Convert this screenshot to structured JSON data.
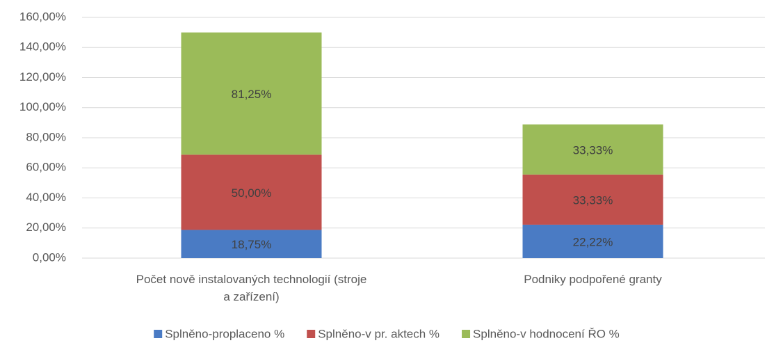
{
  "chart_data": {
    "type": "stacked_bar",
    "categories": [
      "Počet nově instalovaných technologií (stroje a zařízení)",
      "Podniky podpořené granty"
    ],
    "series": [
      {
        "name": "Splněno-proplaceno %",
        "color": "#4a7bc4",
        "values": [
          18.75,
          22.22
        ],
        "value_labels": [
          "18,75%",
          "22,22%"
        ]
      },
      {
        "name": "Splněno-v pr. aktech %",
        "color": "#c0504d",
        "values": [
          50,
          33.33
        ],
        "value_labels": [
          "50,00%",
          "33,33%"
        ]
      },
      {
        "name": "Splněno-v hodnocení ŘO %",
        "color": "#9bbb59",
        "values": [
          81.25,
          33.33
        ],
        "value_labels": [
          "81,25%",
          "33,33%"
        ]
      }
    ],
    "ylim": [
      0,
      160
    ],
    "yticks": [
      {
        "value": 0,
        "label": "0,00%"
      },
      {
        "value": 20,
        "label": "20,00%"
      },
      {
        "value": 40,
        "label": "40,00%"
      },
      {
        "value": 60,
        "label": "60,00%"
      },
      {
        "value": 80,
        "label": "80,00%"
      },
      {
        "value": 100,
        "label": "100,00%"
      },
      {
        "value": 120,
        "label": "120,00%"
      },
      {
        "value": 140,
        "label": "140,00%"
      },
      {
        "value": 160,
        "label": "160,00%"
      }
    ],
    "grid": true,
    "legend": "bottom"
  }
}
